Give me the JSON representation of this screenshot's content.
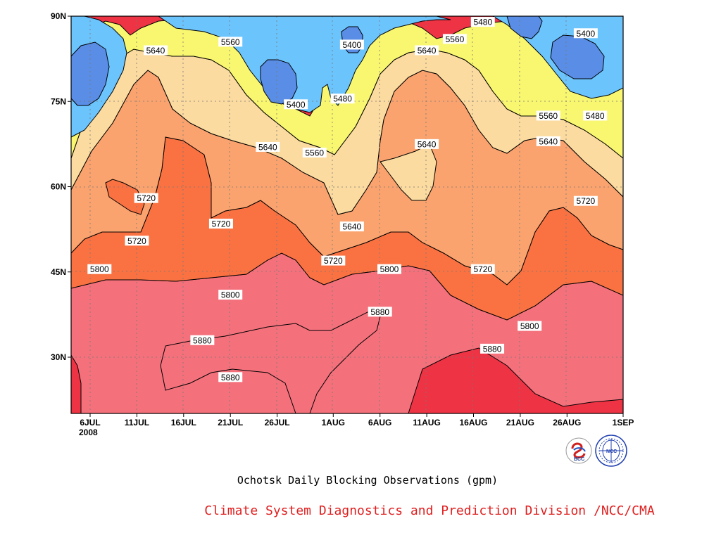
{
  "chart_data": {
    "type": "contour",
    "title": "Ochotsk Daily Blocking Observations (gpm)",
    "credit": "Climate System Diagnostics and Prediction Division /NCC/CMA",
    "x_ticks": [
      "6JUL",
      "11JUL",
      "16JUL",
      "21JUL",
      "26JUL",
      "1AUG",
      "6AUG",
      "11AUG",
      "16AUG",
      "21AUG",
      "26AUG",
      "1SEP"
    ],
    "x_year": "2008",
    "y_ticks": [
      "90N",
      "75N",
      "60N",
      "45N",
      "30N"
    ],
    "levels": [
      5400,
      5480,
      5560,
      5640,
      5720,
      5800,
      5880
    ],
    "band_colors": [
      "#5a8ee6",
      "#6cc4fd",
      "#f9f770",
      "#fbdb9f",
      "#fba36e",
      "#fa7242",
      "#f4717c",
      "#ee3344"
    ],
    "contour_labels": [
      {
        "text": "5400",
        "date": "7/28",
        "lat": 74.5
      },
      {
        "text": "5400",
        "date": "8/3",
        "lat": 85
      },
      {
        "text": "5400",
        "date": "8/28",
        "lat": 87
      },
      {
        "text": "5480",
        "date": "8/2",
        "lat": 75.5
      },
      {
        "text": "5480",
        "date": "8/17",
        "lat": 89
      },
      {
        "text": "5480",
        "date": "8/29",
        "lat": 72.5
      },
      {
        "text": "5560",
        "date": "7/21",
        "lat": 85.5
      },
      {
        "text": "5560",
        "date": "7/30",
        "lat": 66
      },
      {
        "text": "5560",
        "date": "8/14",
        "lat": 86
      },
      {
        "text": "5560",
        "date": "8/24",
        "lat": 72.5
      },
      {
        "text": "5640",
        "date": "7/13",
        "lat": 84
      },
      {
        "text": "5640",
        "date": "7/25",
        "lat": 67
      },
      {
        "text": "5640",
        "date": "8/3",
        "lat": 53
      },
      {
        "text": "5640",
        "date": "8/11",
        "lat": 84
      },
      {
        "text": "5640",
        "date": "8/11",
        "lat": 67.5
      },
      {
        "text": "5640",
        "date": "8/24",
        "lat": 68
      },
      {
        "text": "5720",
        "date": "7/12",
        "lat": 58
      },
      {
        "text": "5720",
        "date": "7/11",
        "lat": 50.5
      },
      {
        "text": "5720",
        "date": "7/20",
        "lat": 53.5
      },
      {
        "text": "5720",
        "date": "8/1",
        "lat": 47
      },
      {
        "text": "5720",
        "date": "8/17",
        "lat": 45.5
      },
      {
        "text": "5720",
        "date": "8/28",
        "lat": 57.5
      },
      {
        "text": "5800",
        "date": "7/7",
        "lat": 45.5
      },
      {
        "text": "5800",
        "date": "7/21",
        "lat": 41
      },
      {
        "text": "5800",
        "date": "8/7",
        "lat": 45.5
      },
      {
        "text": "5800",
        "date": "8/22",
        "lat": 35.5
      },
      {
        "text": "5880",
        "date": "7/18",
        "lat": 33
      },
      {
        "text": "5880",
        "date": "7/21",
        "lat": 26.5
      },
      {
        "text": "5880",
        "date": "8/6",
        "lat": 38
      },
      {
        "text": "5880",
        "date": "8/18",
        "lat": 31.5
      }
    ]
  },
  "logos": {
    "bcc_text": "BCC",
    "ncc_text": "NCC"
  }
}
